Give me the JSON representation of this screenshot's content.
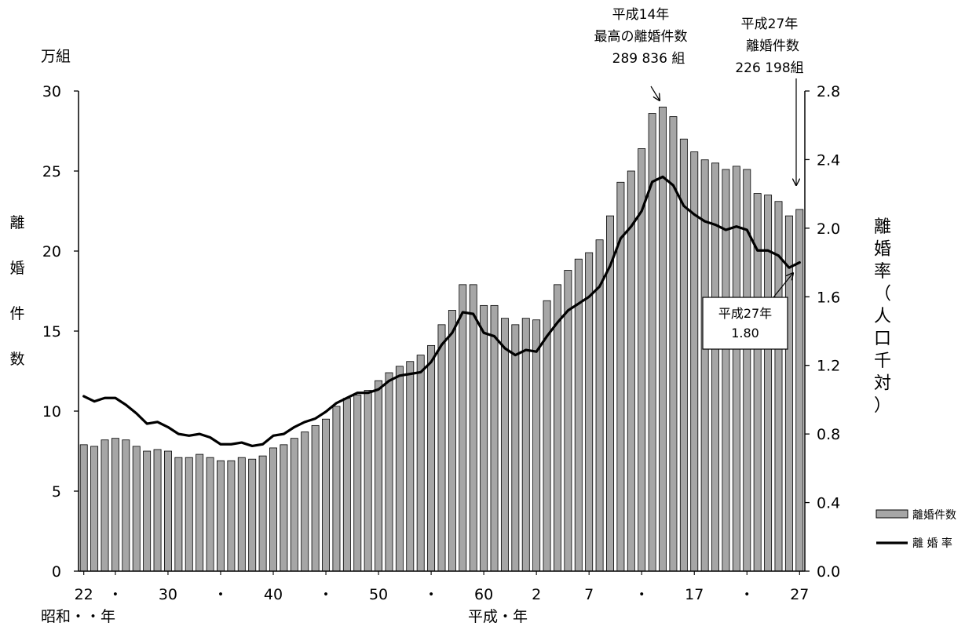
{
  "chart_data": {
    "type": "bar",
    "categories": [
      "22",
      "",
      "",
      "",
      "",
      "",
      "",
      "",
      "30",
      "",
      "",
      "",
      "",
      "",
      "",
      "",
      "",
      "",
      "40",
      "",
      "",
      "",
      "",
      "",
      "",
      "",
      "",
      "",
      "50",
      "",
      "",
      "",
      "",
      "",
      "",
      "",
      "",
      "",
      "60",
      "",
      "",
      "",
      "",
      "2",
      "",
      "",
      "",
      "",
      "7",
      "",
      "",
      "",
      "",
      "",
      "",
      "",
      "",
      "",
      "17",
      "",
      "",
      "",
      "",
      "",
      "",
      "",
      "",
      "",
      "27"
    ],
    "series": [
      {
        "name": "離婚件数",
        "kind": "bar",
        "axis": "left",
        "color": "#a6a6a6",
        "values": [
          7.9,
          7.8,
          8.2,
          8.3,
          8.2,
          7.8,
          7.5,
          7.6,
          7.5,
          7.1,
          7.1,
          7.3,
          7.1,
          6.9,
          6.9,
          7.1,
          7.0,
          7.2,
          7.7,
          7.9,
          8.3,
          8.7,
          9.1,
          9.5,
          10.3,
          10.8,
          11.0,
          11.3,
          11.9,
          12.4,
          12.8,
          13.1,
          13.5,
          14.1,
          15.4,
          16.3,
          17.9,
          17.9,
          16.6,
          16.6,
          15.8,
          15.4,
          15.8,
          15.7,
          16.9,
          17.9,
          18.8,
          19.5,
          19.9,
          20.7,
          22.2,
          24.3,
          25.0,
          26.4,
          28.6,
          29.0,
          28.4,
          27.0,
          26.2,
          25.7,
          25.5,
          25.1,
          25.3,
          25.1,
          23.6,
          23.5,
          23.1,
          22.2,
          22.6
        ]
      },
      {
        "name": "離 婚 率",
        "kind": "line",
        "axis": "right",
        "color": "#000000",
        "values": [
          1.02,
          0.99,
          1.01,
          1.01,
          0.97,
          0.92,
          0.86,
          0.87,
          0.84,
          0.8,
          0.79,
          0.8,
          0.78,
          0.74,
          0.74,
          0.75,
          0.73,
          0.74,
          0.79,
          0.8,
          0.84,
          0.87,
          0.89,
          0.93,
          0.98,
          1.01,
          1.04,
          1.04,
          1.06,
          1.11,
          1.14,
          1.15,
          1.16,
          1.22,
          1.32,
          1.39,
          1.51,
          1.5,
          1.39,
          1.37,
          1.3,
          1.26,
          1.29,
          1.28,
          1.37,
          1.45,
          1.52,
          1.56,
          1.6,
          1.66,
          1.78,
          1.94,
          2.01,
          2.1,
          2.27,
          2.3,
          2.25,
          2.13,
          2.08,
          2.04,
          2.02,
          1.99,
          2.01,
          1.99,
          1.87,
          1.87,
          1.84,
          1.77,
          1.8
        ]
      }
    ],
    "y_left": {
      "title": "万組",
      "side_label": [
        "離",
        "婚",
        "件",
        "数"
      ],
      "ylim": [
        0,
        30
      ],
      "ticks": [
        "0",
        "5",
        "10",
        "15",
        "20",
        "25",
        "30"
      ]
    },
    "y_right": {
      "side_label": [
        "離",
        "婚",
        "率",
        "（",
        "人",
        "口",
        "千",
        "対",
        "）"
      ],
      "ylim": [
        0.0,
        2.8
      ],
      "ticks": [
        "0.0",
        "0.4",
        "0.8",
        "1.2",
        "1.6",
        "2.0",
        "2.4",
        "2.8"
      ]
    },
    "x_ticks": [
      {
        "index": 0,
        "label": "22"
      },
      {
        "index": 3,
        "label": "・"
      },
      {
        "index": 8,
        "label": "30"
      },
      {
        "index": 13,
        "label": "・"
      },
      {
        "index": 18,
        "label": "40"
      },
      {
        "index": 23,
        "label": "・"
      },
      {
        "index": 28,
        "label": "50"
      },
      {
        "index": 33,
        "label": "・"
      },
      {
        "index": 38,
        "label": "60"
      },
      {
        "index": 43,
        "label": "2"
      },
      {
        "index": 48,
        "label": "7"
      },
      {
        "index": 53,
        "label": "・"
      },
      {
        "index": 58,
        "label": "17"
      },
      {
        "index": 63,
        "label": "・"
      },
      {
        "index": 68,
        "label": "27"
      }
    ],
    "era_labels": {
      "showa": "昭和・・年",
      "heisei": "平成・年"
    },
    "annotations": {
      "peak": {
        "lines": [
          "平成14年",
          "最高の離婚件数",
          "289 836 組"
        ]
      },
      "last_count": {
        "lines": [
          "平成27年",
          "離婚件数",
          "226 198組"
        ]
      },
      "last_rate": {
        "lines": [
          "平成27年",
          "1.80"
        ]
      }
    },
    "legend": {
      "position": "bottom-right",
      "items": [
        "離婚件数",
        "離 婚 率"
      ]
    },
    "grid": false
  }
}
